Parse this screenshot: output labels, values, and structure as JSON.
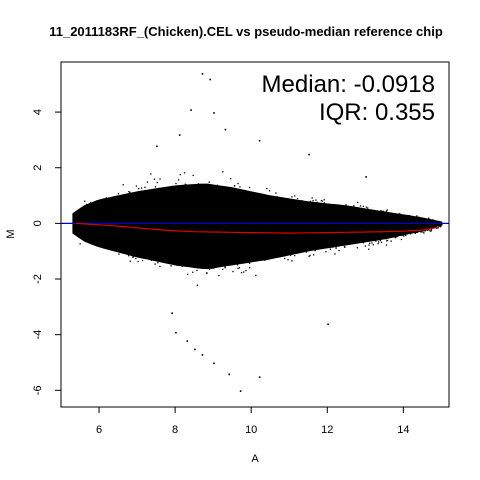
{
  "chart_data": {
    "type": "scatter",
    "title": "11_2011183RF_(Chicken).CEL vs pseudo-median reference chip",
    "xlabel": "A",
    "ylabel": "M",
    "xlim": [
      5.0,
      15.2
    ],
    "ylim": [
      -6.6,
      5.8
    ],
    "x_ticks": [
      6,
      8,
      10,
      12,
      14
    ],
    "y_ticks": [
      -6,
      -4,
      -2,
      0,
      2,
      4
    ],
    "annotations": {
      "median": "Median: -0.0918",
      "iqr": "IQR: 0.355"
    },
    "reference_line": {
      "y": 0,
      "color": "#0000cc"
    },
    "loess_curve": {
      "color": "#e00000",
      "points": [
        [
          5.4,
          0.0
        ],
        [
          6.0,
          -0.05
        ],
        [
          6.5,
          -0.1
        ],
        [
          7.0,
          -0.16
        ],
        [
          7.5,
          -0.22
        ],
        [
          8.0,
          -0.27
        ],
        [
          8.5,
          -0.3
        ],
        [
          9.0,
          -0.31
        ],
        [
          9.5,
          -0.32
        ],
        [
          10.0,
          -0.33
        ],
        [
          10.5,
          -0.34
        ],
        [
          11.0,
          -0.35
        ],
        [
          11.5,
          -0.34
        ],
        [
          12.0,
          -0.33
        ],
        [
          12.5,
          -0.32
        ],
        [
          13.0,
          -0.31
        ],
        [
          13.5,
          -0.3
        ],
        [
          14.0,
          -0.28
        ],
        [
          14.5,
          -0.24
        ],
        [
          14.9,
          -0.15
        ]
      ]
    },
    "cloud_envelope": {
      "point_color": "#000000",
      "upper": [
        [
          5.3,
          0.5
        ],
        [
          5.6,
          0.9
        ],
        [
          6.0,
          1.2
        ],
        [
          7.0,
          1.6
        ],
        [
          8.0,
          1.9
        ],
        [
          8.8,
          2.0
        ],
        [
          9.5,
          1.8
        ],
        [
          10.5,
          1.4
        ],
        [
          11.5,
          1.1
        ],
        [
          12.5,
          0.9
        ],
        [
          13.5,
          0.6
        ],
        [
          14.5,
          0.3
        ],
        [
          15.0,
          0.1
        ]
      ],
      "lower": [
        [
          5.3,
          -0.5
        ],
        [
          5.6,
          -0.9
        ],
        [
          6.0,
          -1.2
        ],
        [
          7.0,
          -1.7
        ],
        [
          8.0,
          -2.1
        ],
        [
          8.8,
          -2.3
        ],
        [
          9.5,
          -2.1
        ],
        [
          10.5,
          -1.8
        ],
        [
          11.5,
          -1.4
        ],
        [
          12.5,
          -1.1
        ],
        [
          13.5,
          -0.8
        ],
        [
          14.5,
          -0.4
        ],
        [
          15.0,
          -0.1
        ]
      ],
      "outliers": [
        [
          8.7,
          5.4
        ],
        [
          8.9,
          5.2
        ],
        [
          8.4,
          4.1
        ],
        [
          9.0,
          4.0
        ],
        [
          8.1,
          3.2
        ],
        [
          9.3,
          3.4
        ],
        [
          10.2,
          3.0
        ],
        [
          7.5,
          2.8
        ],
        [
          11.5,
          2.5
        ],
        [
          13.0,
          1.7
        ],
        [
          8.0,
          -3.9
        ],
        [
          8.5,
          -4.5
        ],
        [
          8.7,
          -4.7
        ],
        [
          9.4,
          -5.4
        ],
        [
          9.7,
          -6.0
        ],
        [
          10.2,
          -5.5
        ],
        [
          12.0,
          -3.6
        ],
        [
          7.9,
          -3.2
        ],
        [
          9.0,
          -5.0
        ],
        [
          8.3,
          -4.2
        ]
      ]
    }
  }
}
